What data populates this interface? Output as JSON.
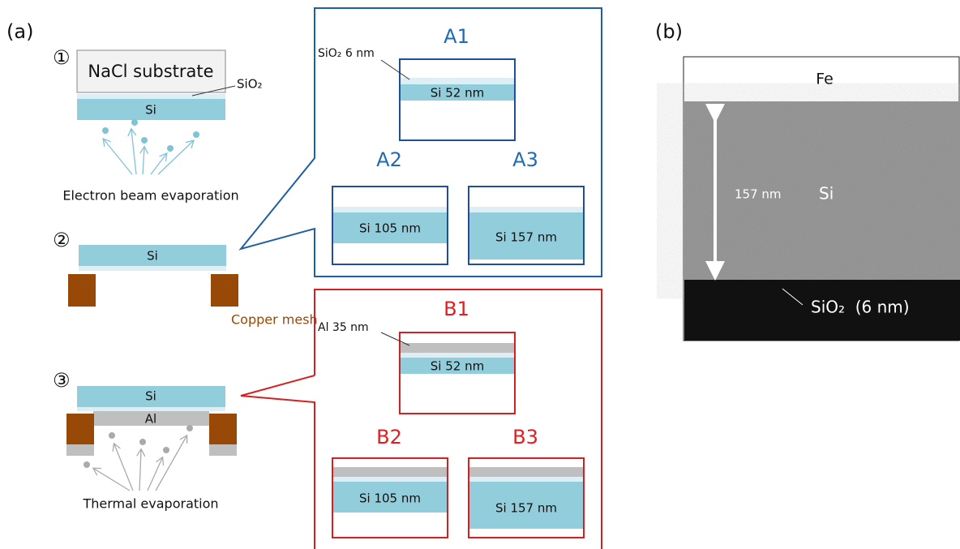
{
  "panel_a": {
    "label": "(a)",
    "steps": [
      {
        "number": "①",
        "substrate": "NaCl substrate",
        "oxide": "SiO₂",
        "film": "Si",
        "method": "Electron beam evaporation"
      },
      {
        "number": "②",
        "film": "Si",
        "mesh": "Copper mesh"
      },
      {
        "number": "③",
        "film": "Si",
        "coating": "Al",
        "method": "Thermal evaporation"
      }
    ],
    "group_a": {
      "samples": [
        {
          "name": "A1",
          "oxide_label": "SiO₂ 6 nm",
          "film": "Si 52 nm"
        },
        {
          "name": "A2",
          "film": "Si 105 nm"
        },
        {
          "name": "A3",
          "film": "Si 157 nm"
        }
      ]
    },
    "group_b": {
      "samples": [
        {
          "name": "B1",
          "coating_label": "Al 35 nm",
          "film": "Si 52 nm"
        },
        {
          "name": "B2",
          "film": "Si 105 nm"
        },
        {
          "name": "B3",
          "film": "Si 157 nm"
        }
      ]
    }
  },
  "panel_b": {
    "label": "(b)",
    "top": "Fe",
    "thickness": "157 nm",
    "film": "Si",
    "bottom": "SiO₂  (6 nm)"
  }
}
